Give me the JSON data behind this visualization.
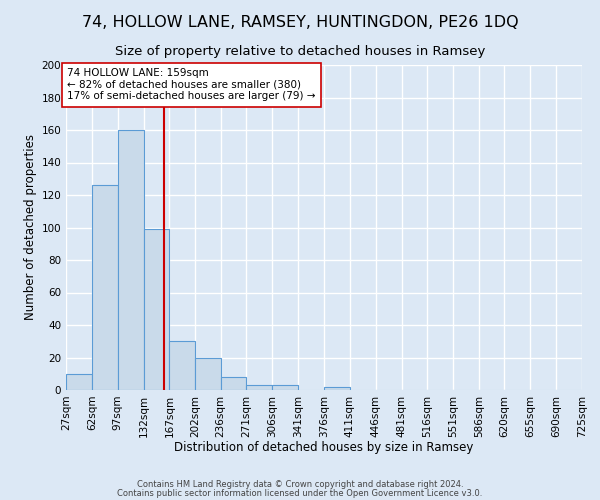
{
  "title": "74, HOLLOW LANE, RAMSEY, HUNTINGDON, PE26 1DQ",
  "subtitle": "Size of property relative to detached houses in Ramsey",
  "xlabel": "Distribution of detached houses by size in Ramsey",
  "ylabel": "Number of detached properties",
  "footer_line1": "Contains HM Land Registry data © Crown copyright and database right 2024.",
  "footer_line2": "Contains public sector information licensed under the Open Government Licence v3.0.",
  "bin_edges": [
    27,
    62,
    97,
    132,
    167,
    202,
    236,
    271,
    306,
    341,
    376,
    411,
    446,
    481,
    516,
    551,
    586,
    620,
    655,
    690,
    725
  ],
  "bin_labels": [
    "27sqm",
    "62sqm",
    "97sqm",
    "132sqm",
    "167sqm",
    "202sqm",
    "236sqm",
    "271sqm",
    "306sqm",
    "341sqm",
    "376sqm",
    "411sqm",
    "446sqm",
    "481sqm",
    "516sqm",
    "551sqm",
    "586sqm",
    "620sqm",
    "655sqm",
    "690sqm",
    "725sqm"
  ],
  "counts": [
    10,
    126,
    160,
    99,
    30,
    20,
    8,
    3,
    3,
    0,
    2,
    0,
    0,
    0,
    0,
    0,
    0,
    0,
    0,
    0
  ],
  "bar_color": "#c9daea",
  "bar_edge_color": "#5b9bd5",
  "vline_x": 159,
  "vline_color": "#cc0000",
  "annotation_title": "74 HOLLOW LANE: 159sqm",
  "annotation_line1": "← 82% of detached houses are smaller (380)",
  "annotation_line2": "17% of semi-detached houses are larger (79) →",
  "annotation_box_facecolor": "#ffffff",
  "annotation_box_edgecolor": "#cc0000",
  "ylim": [
    0,
    200
  ],
  "yticks": [
    0,
    20,
    40,
    60,
    80,
    100,
    120,
    140,
    160,
    180,
    200
  ],
  "background_color": "#dce8f5",
  "plot_background_color": "#dce8f5",
  "grid_color": "#ffffff",
  "title_fontsize": 11.5,
  "subtitle_fontsize": 9.5,
  "axis_label_fontsize": 8.5,
  "tick_fontsize": 7.5,
  "annotation_fontsize": 7.5
}
